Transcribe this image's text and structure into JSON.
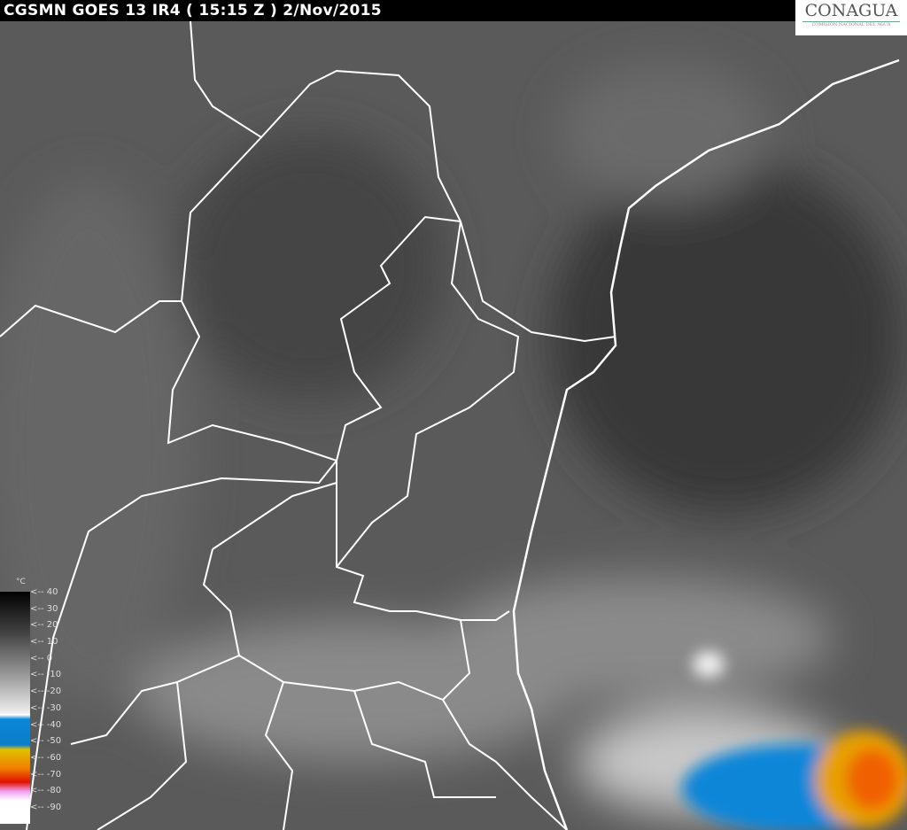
{
  "header": {
    "title": "CGSMN GOES 13 IR4 ( 15:15 Z ) 2/Nov/2015"
  },
  "logo": {
    "name": "CONAGUA",
    "subtitle": "COMISIÓN NACIONAL DEL AGUA"
  },
  "scale": {
    "unit": "°C",
    "labels": [
      "<-- 40",
      "<-- 30",
      "<-- 20",
      "<-- 10",
      "<-- 0",
      "<-- -10",
      "<-- -20",
      "<-- -30",
      "<-- -40",
      "<-- -50",
      "<-- -60",
      "<-- -70",
      "<-- -80",
      "<-- -90"
    ]
  },
  "colors": {
    "background": "#555555",
    "borders": "#ffffff",
    "cold_blue": "#0a86d8",
    "cold_orange": "#f08000",
    "cold_red": "#e01000"
  }
}
